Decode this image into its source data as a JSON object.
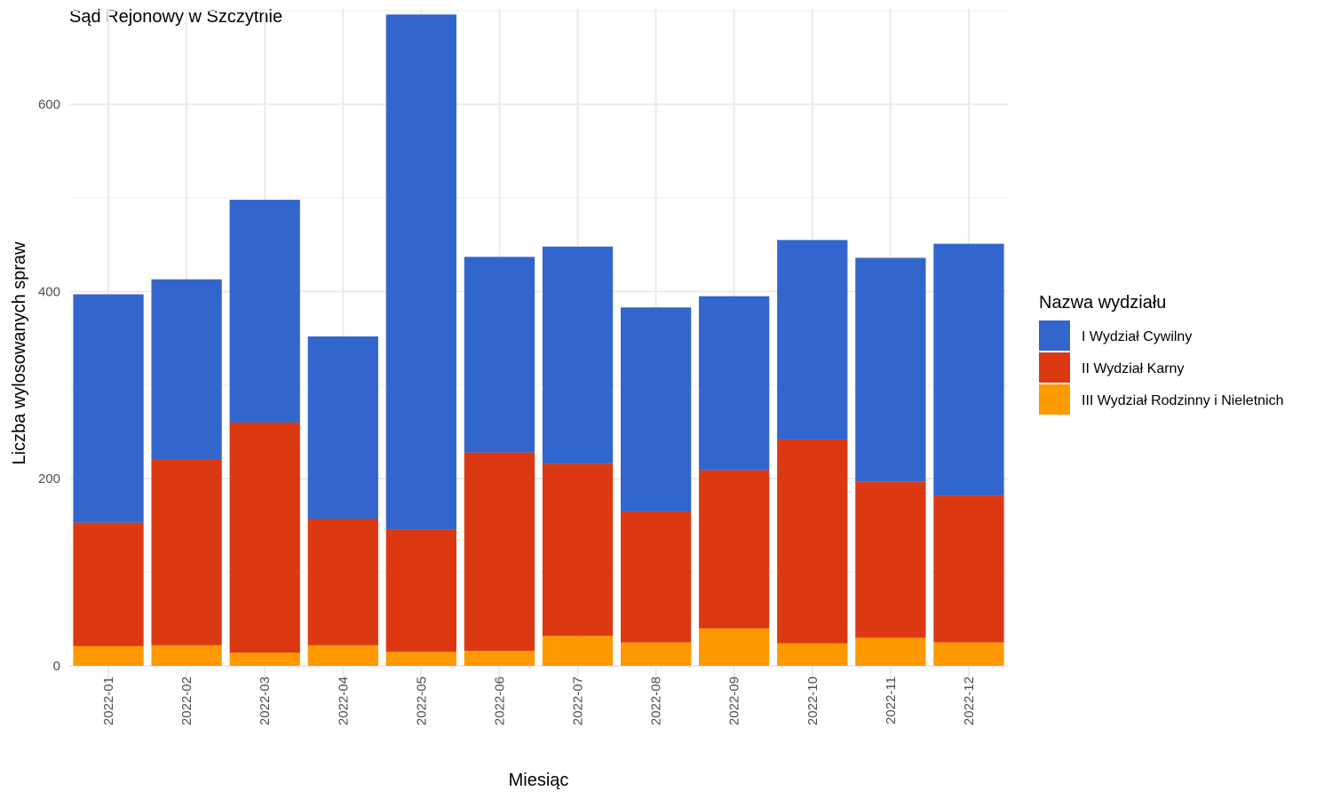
{
  "chart_data": {
    "type": "bar",
    "stacked": true,
    "title": "Sąd Rejonowy w Szczytnie",
    "xlabel": "Miesiąc",
    "ylabel": "Liczba wylosowanych spraw",
    "ylim": [
      0,
      700
    ],
    "y_ticks": [
      0,
      200,
      400,
      600
    ],
    "grid": true,
    "legend_position": "right",
    "legend_title": "Nazwa wydziału",
    "categories": [
      "2022-01",
      "2022-02",
      "2022-03",
      "2022-04",
      "2022-05",
      "2022-06",
      "2022-07",
      "2022-08",
      "2022-09",
      "2022-10",
      "2022-11",
      "2022-12"
    ],
    "series": [
      {
        "name": "III Wydział Rodzinny i Nieletnich",
        "color": "#FF9900",
        "values": [
          21,
          22,
          14,
          22,
          15,
          16,
          32,
          25,
          40,
          24,
          30,
          25
        ]
      },
      {
        "name": "II Wydział Karny",
        "color": "#DC3912",
        "values": [
          132,
          199,
          246,
          135,
          131,
          212,
          184,
          140,
          169,
          218,
          167,
          157
        ]
      },
      {
        "name": "I Wydział Cywilny",
        "color": "#3366CC",
        "values": [
          244,
          192,
          238,
          195,
          550,
          209,
          232,
          218,
          186,
          213,
          239,
          269
        ]
      }
    ],
    "legend_order": [
      "I Wydział Cywilny",
      "II Wydział Karny",
      "III Wydział Rodzinny i Nieletnich"
    ]
  }
}
